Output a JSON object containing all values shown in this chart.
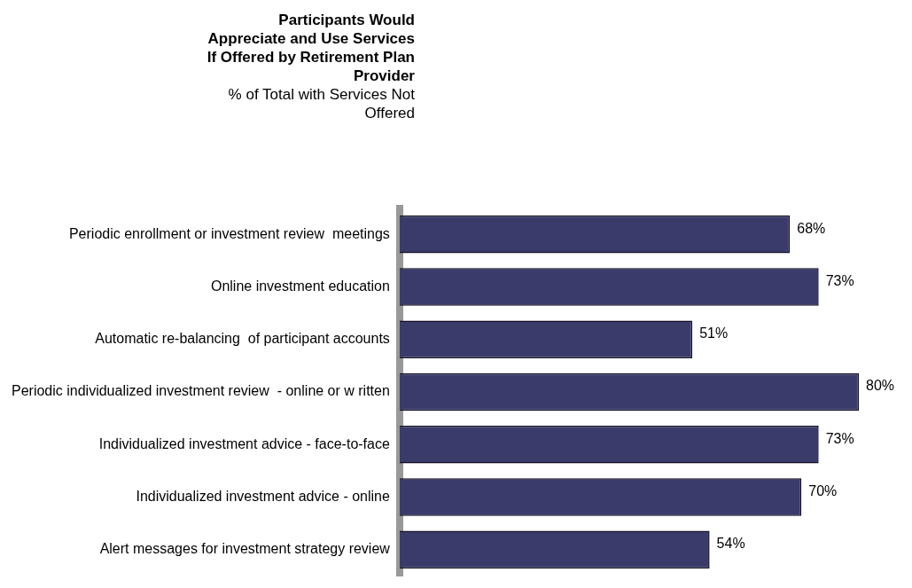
{
  "chart_data": {
    "type": "bar",
    "orientation": "horizontal",
    "title": "Participants Would Appreciate and Use Services If Offered by Retirement Plan Provider",
    "subtitle": "% of Total with Services Not Offered",
    "categories": [
      "Periodic enrollment or investment review  meetings",
      "Online investment education",
      "Automatic re-balancing  of participant accounts",
      "Periodic individualized investment review  - online or w ritten",
      "Individualized investment advice - face-to-face",
      "Individualized investment advice - online",
      "Alert messages for investment strategy review"
    ],
    "values": [
      68,
      73,
      51,
      80,
      73,
      70,
      54
    ],
    "value_labels": [
      "68%",
      "73%",
      "51%",
      "80%",
      "73%",
      "70%",
      "54%"
    ],
    "color": "#3b3b6b"
  }
}
